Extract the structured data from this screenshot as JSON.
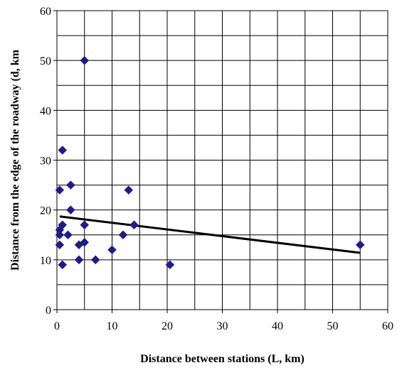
{
  "chart_data": {
    "type": "scatter",
    "title": "",
    "xlabel": "Distance between stations (L, km)",
    "ylabel": "Distance from the edge of the roadway (d, km",
    "xlim": [
      0,
      60
    ],
    "ylim": [
      0,
      60
    ],
    "x_ticks": [
      "0",
      "10",
      "20",
      "30",
      "40",
      "50",
      "60"
    ],
    "y_ticks": [
      "0",
      "10",
      "20",
      "30",
      "40",
      "50",
      "60"
    ],
    "grid": true,
    "legend": "none",
    "marker": "diamond",
    "marker_color": "#1c1c8c",
    "trendline_color": "#000000",
    "points": [
      {
        "x": 0.5,
        "y": 24
      },
      {
        "x": 0.5,
        "y": 16
      },
      {
        "x": 0.5,
        "y": 15
      },
      {
        "x": 0.5,
        "y": 13
      },
      {
        "x": 1,
        "y": 32
      },
      {
        "x": 1,
        "y": 17
      },
      {
        "x": 1,
        "y": 9
      },
      {
        "x": 2,
        "y": 15
      },
      {
        "x": 2.5,
        "y": 25
      },
      {
        "x": 2.5,
        "y": 20
      },
      {
        "x": 4,
        "y": 13
      },
      {
        "x": 4,
        "y": 10
      },
      {
        "x": 5,
        "y": 50
      },
      {
        "x": 5,
        "y": 17
      },
      {
        "x": 5,
        "y": 13.5
      },
      {
        "x": 7,
        "y": 10
      },
      {
        "x": 10,
        "y": 12
      },
      {
        "x": 12,
        "y": 15
      },
      {
        "x": 13,
        "y": 24
      },
      {
        "x": 14,
        "y": 17
      },
      {
        "x": 20.5,
        "y": 9
      },
      {
        "x": 55,
        "y": 13
      }
    ],
    "trendline": {
      "x": [
        0.5,
        55
      ],
      "y": [
        18.7,
        11.4
      ]
    }
  }
}
